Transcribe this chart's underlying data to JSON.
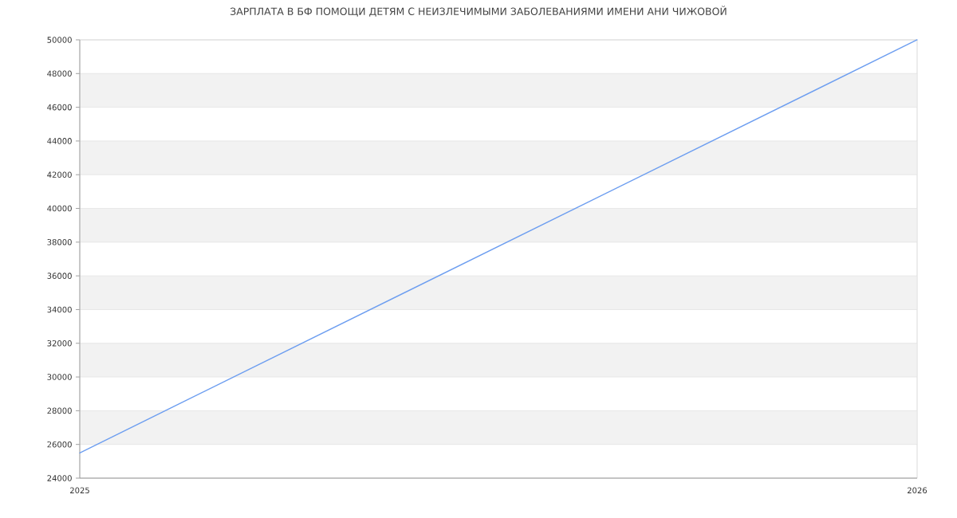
{
  "chart_data": {
    "type": "line",
    "title": "ЗАРПЛАТА В БФ ПОМОЩИ ДЕТЯМ С НЕИЗЛЕЧИМЫМИ ЗАБОЛЕВАНИЯМИ ИМЕНИ АНИ ЧИЖОВОЙ",
    "x": [
      2025,
      2026
    ],
    "values": [
      25500,
      50000
    ],
    "color": "#6d9ef0",
    "xlim": [
      2025,
      2026
    ],
    "xticks": [
      2025,
      2026
    ],
    "ylim": [
      24000,
      50000
    ],
    "yticks": [
      24000,
      26000,
      28000,
      30000,
      32000,
      34000,
      36000,
      38000,
      40000,
      42000,
      44000,
      46000,
      48000,
      50000
    ],
    "grid": "y",
    "bands": [
      {
        "axis": "y",
        "from": 26000,
        "to": 28000,
        "color": "#f2f2f2"
      },
      {
        "axis": "y",
        "from": 30000,
        "to": 32000,
        "color": "#f2f2f2"
      },
      {
        "axis": "y",
        "from": 34000,
        "to": 36000,
        "color": "#f2f2f2"
      },
      {
        "axis": "y",
        "from": 38000,
        "to": 40000,
        "color": "#f2f2f2"
      },
      {
        "axis": "y",
        "from": 42000,
        "to": 44000,
        "color": "#f2f2f2"
      },
      {
        "axis": "y",
        "from": 46000,
        "to": 48000,
        "color": "#f2f2f2"
      }
    ]
  }
}
